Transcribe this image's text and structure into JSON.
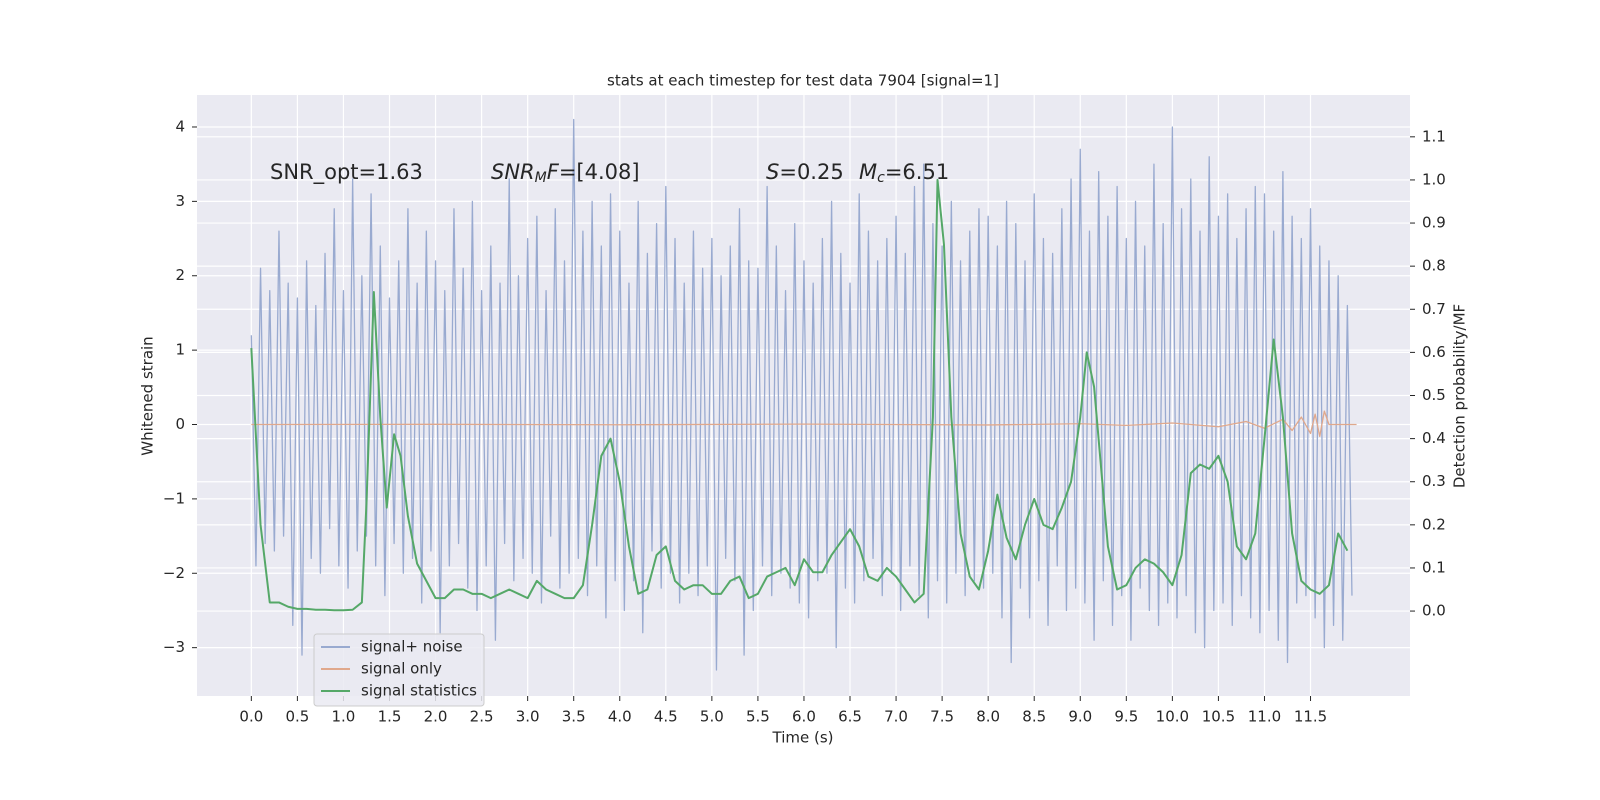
{
  "chart_data": {
    "type": "line",
    "title": "stats at each timestep for test data 7904 [signal=1]",
    "xlabel": "Time (s)",
    "ylabel": "Whitened strain",
    "y2label": "Detection probability/MF",
    "xlim": [
      -0.59,
      12.58
    ],
    "ylim": [
      -3.65,
      4.43
    ],
    "y2lim": [
      -0.197,
      1.197
    ],
    "xticks": [
      {
        "value": 0,
        "label": "0.0"
      },
      {
        "value": 0.5,
        "label": "0.5"
      },
      {
        "value": 1,
        "label": "1.0"
      },
      {
        "value": 1.5,
        "label": "1.5"
      },
      {
        "value": 2,
        "label": "2.0"
      },
      {
        "value": 2.5,
        "label": "2.5"
      },
      {
        "value": 3,
        "label": "3.0"
      },
      {
        "value": 3.5,
        "label": "3.5"
      },
      {
        "value": 4,
        "label": "4.0"
      },
      {
        "value": 4.5,
        "label": "4.5"
      },
      {
        "value": 5,
        "label": "5.0"
      },
      {
        "value": 5.5,
        "label": "5.5"
      },
      {
        "value": 6,
        "label": "6.0"
      },
      {
        "value": 6.5,
        "label": "6.5"
      },
      {
        "value": 7,
        "label": "7.0"
      },
      {
        "value": 7.5,
        "label": "7.5"
      },
      {
        "value": 8,
        "label": "8.0"
      },
      {
        "value": 8.5,
        "label": "8.5"
      },
      {
        "value": 9,
        "label": "9.0"
      },
      {
        "value": 9.5,
        "label": "9.5"
      },
      {
        "value": 10,
        "label": "10.0"
      },
      {
        "value": 10.5,
        "label": "10.5"
      },
      {
        "value": 11,
        "label": "11.0"
      },
      {
        "value": 11.5,
        "label": "11.5"
      }
    ],
    "yticks": [
      {
        "value": -3,
        "label": "−3"
      },
      {
        "value": -2,
        "label": "−2"
      },
      {
        "value": -1,
        "label": "−1"
      },
      0,
      1,
      2,
      3,
      4
    ],
    "y2ticks": [
      {
        "value": 0,
        "label": "0.0"
      },
      {
        "value": 0.1,
        "label": "0.1"
      },
      {
        "value": 0.2,
        "label": "0.2"
      },
      {
        "value": 0.3,
        "label": "0.3"
      },
      {
        "value": 0.4,
        "label": "0.4"
      },
      {
        "value": 0.5,
        "label": "0.5"
      },
      {
        "value": 0.6,
        "label": "0.6"
      },
      {
        "value": 0.7,
        "label": "0.7"
      },
      {
        "value": 0.8,
        "label": "0.8"
      },
      {
        "value": 0.9,
        "label": "0.9"
      },
      {
        "value": 1,
        "label": "1.0"
      },
      {
        "value": 1.1,
        "label": "1.1"
      }
    ],
    "grid": true,
    "legend": "lower left",
    "annotations": [
      {
        "parts": [
          {
            "text": "SNR_opt=1.63"
          }
        ]
      },
      {
        "parts": [
          {
            "text": "SNR",
            "italic": true
          },
          {
            "text": "M",
            "italic": true,
            "sub": true
          },
          {
            "text": "F",
            "italic": true
          },
          {
            "text": "=[4.08]"
          }
        ]
      },
      {
        "parts": [
          {
            "text": "S",
            "italic": true
          },
          {
            "text": "=0.25"
          }
        ]
      },
      {
        "parts": [
          {
            "text": "M",
            "italic": true
          },
          {
            "text": "c",
            "italic": true,
            "sub": true
          },
          {
            "text": "=6.51"
          }
        ]
      }
    ],
    "series": [
      {
        "name": "signal+ noise",
        "color": "#99aad0",
        "axis": "y",
        "x": [
          0,
          0.05,
          0.1,
          0.15,
          0.2,
          0.25,
          0.3,
          0.35,
          0.4,
          0.45,
          0.5,
          0.55,
          0.6,
          0.65,
          0.7,
          0.75,
          0.8,
          0.85,
          0.9,
          0.95,
          1,
          1.05,
          1.1,
          1.15,
          1.2,
          1.25,
          1.3,
          1.35,
          1.4,
          1.45,
          1.5,
          1.55,
          1.6,
          1.65,
          1.7,
          1.75,
          1.8,
          1.85,
          1.9,
          1.95,
          2,
          2.05,
          2.1,
          2.15,
          2.2,
          2.25,
          2.3,
          2.35,
          2.4,
          2.45,
          2.5,
          2.55,
          2.6,
          2.65,
          2.7,
          2.75,
          2.8,
          2.85,
          2.9,
          2.95,
          3,
          3.05,
          3.1,
          3.15,
          3.2,
          3.25,
          3.3,
          3.35,
          3.4,
          3.45,
          3.5,
          3.55,
          3.6,
          3.65,
          3.7,
          3.75,
          3.8,
          3.85,
          3.9,
          3.95,
          4,
          4.05,
          4.1,
          4.15,
          4.2,
          4.25,
          4.3,
          4.35,
          4.4,
          4.45,
          4.5,
          4.55,
          4.6,
          4.65,
          4.7,
          4.75,
          4.8,
          4.85,
          4.9,
          4.95,
          5,
          5.05,
          5.1,
          5.15,
          5.2,
          5.25,
          5.3,
          5.35,
          5.4,
          5.45,
          5.5,
          5.55,
          5.6,
          5.65,
          5.7,
          5.75,
          5.8,
          5.85,
          5.9,
          5.95,
          6,
          6.05,
          6.1,
          6.15,
          6.2,
          6.25,
          6.3,
          6.35,
          6.4,
          6.45,
          6.5,
          6.55,
          6.6,
          6.65,
          6.7,
          6.75,
          6.8,
          6.85,
          6.9,
          6.95,
          7,
          7.05,
          7.1,
          7.15,
          7.2,
          7.25,
          7.3,
          7.35,
          7.4,
          7.45,
          7.5,
          7.55,
          7.6,
          7.65,
          7.7,
          7.75,
          7.8,
          7.85,
          7.9,
          7.95,
          8,
          8.05,
          8.1,
          8.15,
          8.2,
          8.25,
          8.3,
          8.35,
          8.4,
          8.45,
          8.5,
          8.55,
          8.6,
          8.65,
          8.7,
          8.75,
          8.8,
          8.85,
          8.9,
          8.95,
          9,
          9.05,
          9.1,
          9.15,
          9.2,
          9.25,
          9.3,
          9.35,
          9.4,
          9.45,
          9.5,
          9.55,
          9.6,
          9.65,
          9.7,
          9.75,
          9.8,
          9.85,
          9.9,
          9.95,
          10,
          10.05,
          10.1,
          10.15,
          10.2,
          10.25,
          10.3,
          10.35,
          10.4,
          10.45,
          10.5,
          10.55,
          10.6,
          10.65,
          10.7,
          10.75,
          10.8,
          10.85,
          10.9,
          10.95,
          11,
          11.05,
          11.1,
          11.15,
          11.2,
          11.25,
          11.3,
          11.35,
          11.4,
          11.45,
          11.5,
          11.55,
          11.6,
          11.65,
          11.7,
          11.75,
          11.8,
          11.85,
          11.9,
          11.95
        ],
        "values": [
          1.2,
          -1.9,
          2.1,
          -1.6,
          1.8,
          -1.7,
          2.6,
          -1.5,
          1.9,
          -2.7,
          1.7,
          -3.1,
          2.2,
          -1.8,
          1.6,
          -2.0,
          2.3,
          -1.4,
          2.9,
          -1.9,
          1.8,
          -2.2,
          3.3,
          -1.7,
          2.0,
          -1.5,
          3.1,
          -1.9,
          2.4,
          -2.3,
          1.7,
          -1.6,
          2.2,
          -2.0,
          2.9,
          -1.8,
          1.9,
          -2.4,
          2.6,
          -1.7,
          2.2,
          -2.8,
          1.8,
          -1.9,
          2.9,
          -1.6,
          2.1,
          -2.2,
          3.0,
          -2.5,
          1.8,
          -1.9,
          2.4,
          -2.9,
          1.9,
          -1.6,
          3.3,
          -2.1,
          2.0,
          -1.8,
          2.5,
          -2.0,
          2.8,
          -2.4,
          1.8,
          -1.5,
          2.9,
          -2.2,
          2.2,
          -2.0,
          4.1,
          -1.8,
          2.6,
          -2.3,
          3.0,
          -1.9,
          2.4,
          -2.6,
          3.1,
          -2.1,
          2.6,
          -2.5,
          1.9,
          -2.1,
          3.0,
          -2.8,
          2.3,
          -1.7,
          2.7,
          -2.2,
          3.2,
          -2.0,
          2.5,
          -2.4,
          1.9,
          -2.0,
          2.6,
          -2.3,
          2.1,
          -1.9,
          2.5,
          -3.3,
          2.0,
          -1.8,
          2.4,
          -2.1,
          2.9,
          -3.1,
          2.2,
          -2.5,
          2.1,
          -1.9,
          3.2,
          -2.3,
          2.4,
          -2.0,
          1.8,
          -2.2,
          2.7,
          -2.4,
          2.2,
          -2.6,
          1.9,
          -2.1,
          2.5,
          -2.0,
          3.0,
          -3.0,
          2.3,
          -2.2,
          1.9,
          -2.4,
          3.1,
          -2.1,
          2.6,
          -1.8,
          2.2,
          -2.3,
          2.5,
          -2.0,
          2.8,
          -2.5,
          2.3,
          -1.9,
          3.2,
          -2.3,
          3.5,
          -2.6,
          2.7,
          -2.1,
          2.4,
          -2.4,
          3.0,
          -2.0,
          2.2,
          -2.3,
          2.6,
          -2.1,
          2.9,
          -2.2,
          2.8,
          -2.0,
          2.4,
          -2.6,
          3.0,
          -3.2,
          2.7,
          -2.2,
          2.2,
          -2.6,
          3.1,
          -2.1,
          2.5,
          -2.7,
          2.3,
          -1.9,
          2.9,
          -2.5,
          3.3,
          -2.2,
          3.7,
          -2.4,
          2.6,
          -2.9,
          3.4,
          -2.1,
          2.8,
          -2.7,
          3.2,
          -2.3,
          2.5,
          -2.9,
          3.0,
          -2.2,
          2.4,
          -2.5,
          3.5,
          -2.7,
          2.7,
          -2.4,
          4.0,
          -2.6,
          2.9,
          -2.3,
          3.3,
          -2.8,
          2.6,
          -3.0,
          3.6,
          -2.5,
          2.8,
          -2.4,
          3.1,
          -2.7,
          2.5,
          -2.3,
          2.9,
          -2.6,
          3.2,
          -2.8,
          3.1,
          -2.5,
          2.6,
          -2.9,
          3.4,
          -3.2,
          2.8,
          -2.4,
          2.5,
          -2.3,
          2.9,
          -2.6,
          2.4,
          -3.0,
          2.2,
          -2.7,
          2.0,
          -2.9,
          1.6,
          -2.3
        ]
      },
      {
        "name": "signal only",
        "color": "#e0a88c",
        "axis": "y",
        "x": [
          0,
          2,
          4,
          6,
          8,
          9,
          9.5,
          10,
          10.5,
          10.8,
          11.0,
          11.2,
          11.3,
          11.4,
          11.5,
          11.55,
          11.6,
          11.65,
          11.7,
          12.0
        ],
        "values": [
          0,
          0.003,
          -0.003,
          0.005,
          -0.006,
          0.01,
          -0.012,
          0.02,
          -0.03,
          0.04,
          -0.05,
          0.07,
          -0.08,
          0.1,
          -0.12,
          0.14,
          -0.16,
          0.18,
          0,
          0
        ]
      },
      {
        "name": "signal statistics",
        "color": "#55a868",
        "axis": "y2",
        "x": [
          0.0,
          0.1,
          0.2,
          0.3,
          0.4,
          0.5,
          0.6,
          0.7,
          0.8,
          0.9,
          1.0,
          1.1,
          1.2,
          1.25,
          1.33,
          1.4,
          1.47,
          1.55,
          1.62,
          1.7,
          1.8,
          1.9,
          2.0,
          2.1,
          2.2,
          2.3,
          2.4,
          2.5,
          2.6,
          2.7,
          2.8,
          2.9,
          3.0,
          3.1,
          3.2,
          3.3,
          3.4,
          3.5,
          3.6,
          3.7,
          3.8,
          3.9,
          4.0,
          4.1,
          4.2,
          4.3,
          4.4,
          4.5,
          4.6,
          4.7,
          4.8,
          4.9,
          5.0,
          5.1,
          5.2,
          5.3,
          5.4,
          5.5,
          5.6,
          5.7,
          5.8,
          5.9,
          6.0,
          6.1,
          6.2,
          6.3,
          6.4,
          6.5,
          6.6,
          6.7,
          6.8,
          6.9,
          7.0,
          7.1,
          7.2,
          7.3,
          7.4,
          7.45,
          7.52,
          7.6,
          7.7,
          7.8,
          7.9,
          8.0,
          8.1,
          8.2,
          8.3,
          8.4,
          8.5,
          8.6,
          8.7,
          8.8,
          8.9,
          9.0,
          9.07,
          9.15,
          9.3,
          9.4,
          9.5,
          9.6,
          9.7,
          9.8,
          9.9,
          10.0,
          10.1,
          10.2,
          10.3,
          10.4,
          10.5,
          10.6,
          10.7,
          10.8,
          10.9,
          11.0,
          11.1,
          11.2,
          11.3,
          11.4,
          11.5,
          11.6,
          11.7,
          11.8,
          11.9
        ],
        "values": [
          0.61,
          0.2,
          0.02,
          0.02,
          0.01,
          0.005,
          0.005,
          0.003,
          0.003,
          0.002,
          0.002,
          0.003,
          0.02,
          0.25,
          0.74,
          0.45,
          0.24,
          0.41,
          0.36,
          0.22,
          0.11,
          0.07,
          0.03,
          0.03,
          0.05,
          0.05,
          0.04,
          0.04,
          0.03,
          0.04,
          0.05,
          0.04,
          0.03,
          0.07,
          0.05,
          0.04,
          0.03,
          0.03,
          0.06,
          0.2,
          0.36,
          0.4,
          0.3,
          0.15,
          0.04,
          0.05,
          0.13,
          0.15,
          0.07,
          0.05,
          0.06,
          0.06,
          0.04,
          0.04,
          0.07,
          0.08,
          0.03,
          0.04,
          0.08,
          0.09,
          0.1,
          0.06,
          0.12,
          0.09,
          0.09,
          0.13,
          0.16,
          0.19,
          0.15,
          0.08,
          0.07,
          0.1,
          0.08,
          0.05,
          0.02,
          0.04,
          0.45,
          1.0,
          0.85,
          0.45,
          0.18,
          0.08,
          0.05,
          0.14,
          0.27,
          0.17,
          0.12,
          0.2,
          0.26,
          0.2,
          0.19,
          0.24,
          0.3,
          0.45,
          0.6,
          0.52,
          0.15,
          0.05,
          0.06,
          0.1,
          0.12,
          0.11,
          0.09,
          0.06,
          0.13,
          0.32,
          0.34,
          0.33,
          0.36,
          0.3,
          0.15,
          0.12,
          0.18,
          0.4,
          0.63,
          0.45,
          0.18,
          0.07,
          0.05,
          0.04,
          0.06,
          0.18,
          0.14
        ]
      }
    ]
  }
}
